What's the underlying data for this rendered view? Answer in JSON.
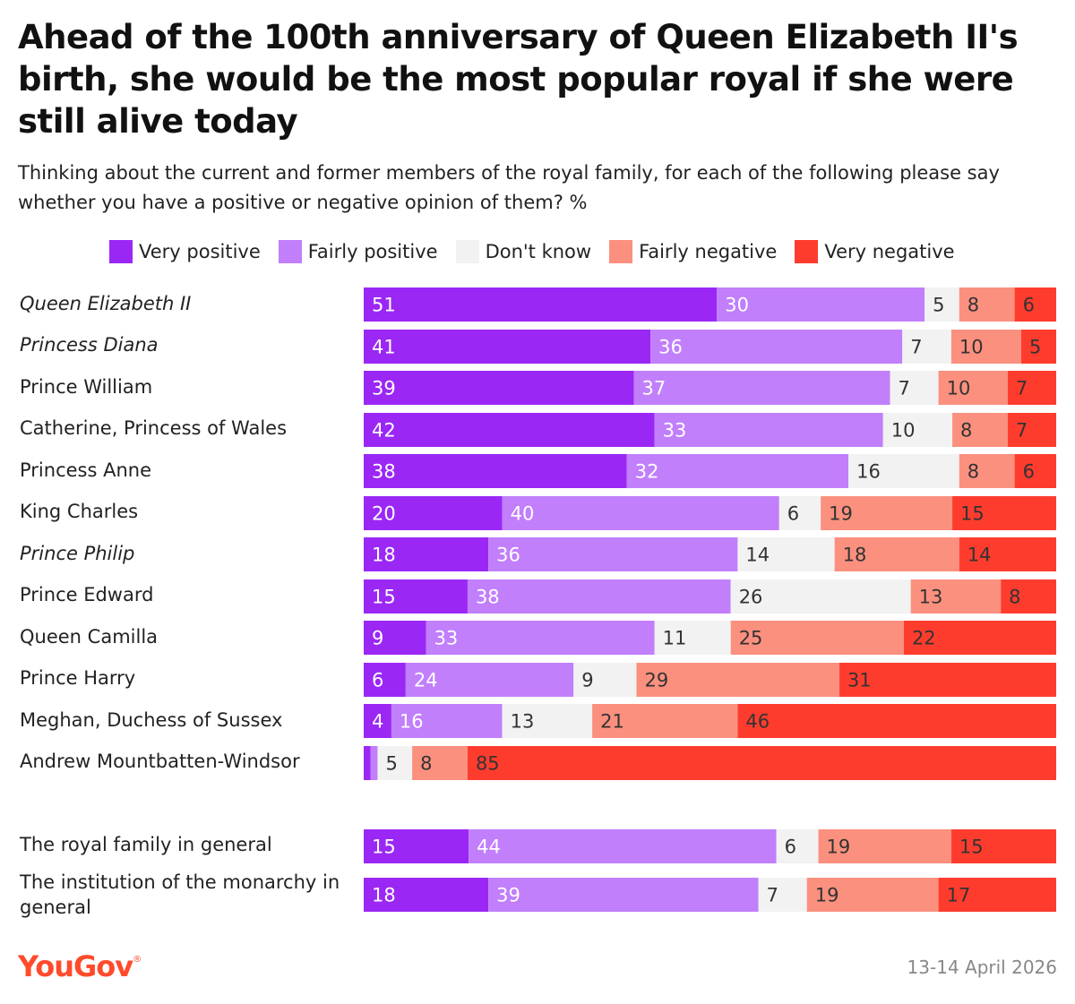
{
  "title": "Ahead of the 100th anniversary of Queen Elizabeth II's birth, she would be the most popular royal if she were still alive today",
  "subtitle": "Thinking about the current and former members of the royal family, for each of the following please say whether you have a positive or negative opinion of them? %",
  "footer": {
    "brand": "YouGov",
    "date": "13-14 April 2026"
  },
  "colors": {
    "very_positive": "#9b27f5",
    "fairly_positive": "#c17ffb",
    "dont_know": "#f2f2f2",
    "fairly_negative": "#fb907f",
    "very_negative": "#fe3c2e"
  },
  "chart_data": {
    "type": "bar",
    "orientation": "horizontal",
    "stacked": true,
    "legend_position": "top",
    "series": [
      {
        "name": "Very positive",
        "color": "#9b27f5"
      },
      {
        "name": "Fairly positive",
        "color": "#c17ffb"
      },
      {
        "name": "Don't know",
        "color": "#f2f2f2"
      },
      {
        "name": "Fairly negative",
        "color": "#fb907f"
      },
      {
        "name": "Very negative",
        "color": "#fe3c2e"
      }
    ],
    "rows": [
      {
        "label": "Queen Elizabeth II",
        "italic": true,
        "values": [
          51,
          30,
          5,
          8,
          6
        ]
      },
      {
        "label": "Princess Diana",
        "italic": true,
        "values": [
          41,
          36,
          7,
          10,
          5
        ]
      },
      {
        "label": "Prince William",
        "italic": false,
        "values": [
          39,
          37,
          7,
          10,
          7
        ]
      },
      {
        "label": "Catherine, Princess of Wales",
        "italic": false,
        "values": [
          42,
          33,
          10,
          8,
          7
        ]
      },
      {
        "label": "Princess Anne",
        "italic": false,
        "values": [
          38,
          32,
          16,
          8,
          6
        ]
      },
      {
        "label": "King Charles",
        "italic": false,
        "values": [
          20,
          40,
          6,
          19,
          15
        ]
      },
      {
        "label": "Prince Philip",
        "italic": true,
        "values": [
          18,
          36,
          14,
          18,
          14
        ]
      },
      {
        "label": "Prince Edward",
        "italic": false,
        "values": [
          15,
          38,
          26,
          13,
          8
        ]
      },
      {
        "label": "Queen Camilla",
        "italic": false,
        "values": [
          9,
          33,
          11,
          25,
          22
        ]
      },
      {
        "label": "Prince Harry",
        "italic": false,
        "values": [
          6,
          24,
          9,
          29,
          31
        ]
      },
      {
        "label": "Meghan, Duchess of Sussex",
        "italic": false,
        "values": [
          4,
          16,
          13,
          21,
          46
        ]
      },
      {
        "label": "Andrew Mountbatten-Windsor",
        "italic": false,
        "values": [
          1,
          1,
          5,
          8,
          85
        ]
      },
      {
        "label": "The royal family in general",
        "italic": false,
        "values": [
          15,
          44,
          6,
          19,
          15
        ]
      },
      {
        "label": "The institution of the monarchy in general",
        "italic": false,
        "values": [
          18,
          39,
          7,
          19,
          17
        ]
      }
    ]
  }
}
